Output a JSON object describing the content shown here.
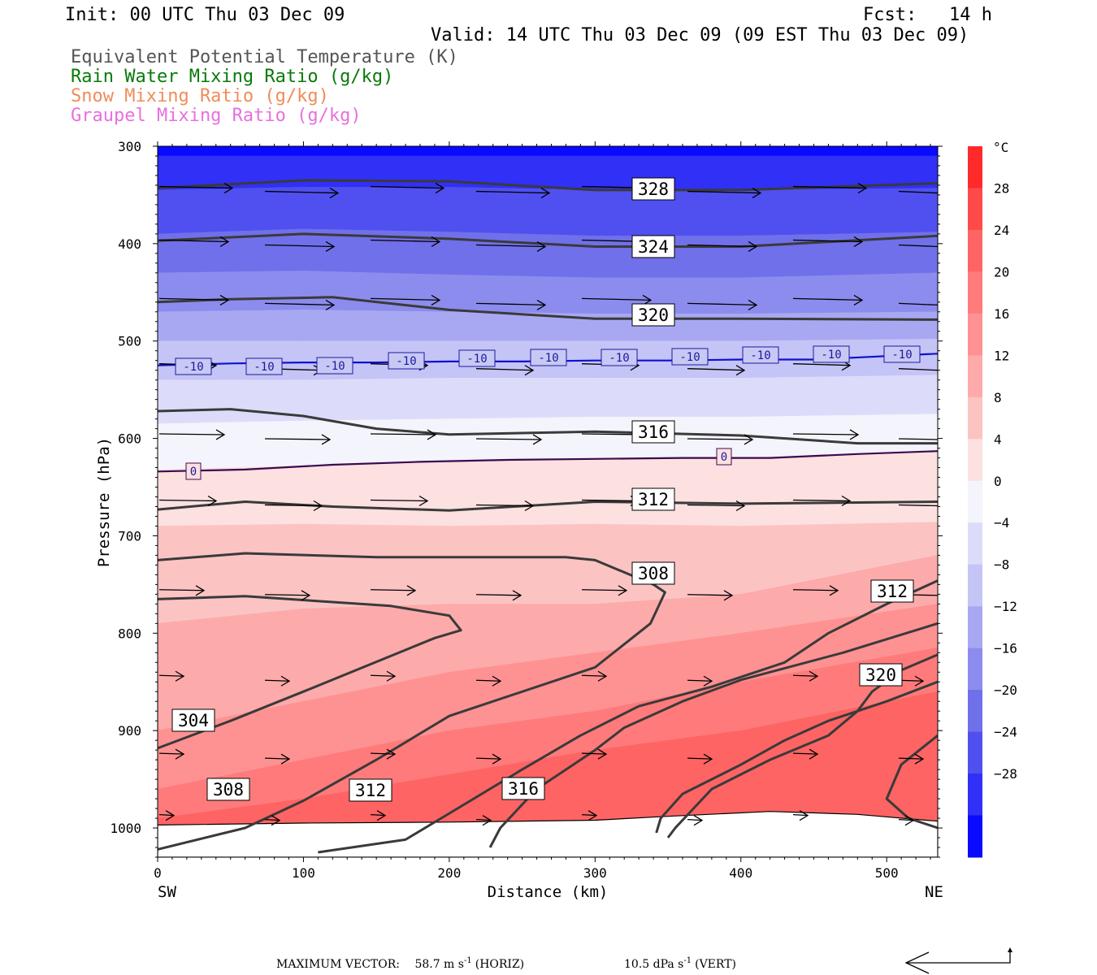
{
  "header": {
    "init": "Init: 00 UTC Thu 03 Dec 09",
    "fcst": "Fcst:   14 h",
    "valid": "Valid: 14 UTC Thu 03 Dec 09 (09 EST Thu 03 Dec 09)"
  },
  "fields": [
    {
      "label": "Equivalent Potential Temperature (K)",
      "color": "#555555"
    },
    {
      "label": "Rain Water Mixing Ratio (g/kg)",
      "color": "#0a7a0a"
    },
    {
      "label": "Snow Mixing Ratio (g/kg)",
      "color": "#f08c5a"
    },
    {
      "label": "Graupel Mixing Ratio (g/kg)",
      "color": "#e870e0"
    }
  ],
  "footer": {
    "max_vector_label": "MAXIMUM VECTOR:",
    "horiz_value": "58.7 m s",
    "horiz_exp": "-1",
    "horiz_unit": "(HORIZ)",
    "vert_value": "10.5 dPa s",
    "vert_exp": "-1",
    "vert_unit": "(VERT)"
  },
  "chart_data": {
    "type": "heatmap",
    "xlabel": "Distance (km)",
    "ylabel": "Pressure (hPa)",
    "x_ticks": [
      0,
      100,
      200,
      300,
      400,
      500
    ],
    "y_ticks": [
      300,
      400,
      500,
      600,
      700,
      800,
      900,
      1000
    ],
    "xlim": [
      0,
      535
    ],
    "ylim": [
      300,
      1030
    ],
    "x_end_labels": {
      "left": "SW",
      "right": "NE"
    },
    "colorbar": {
      "unit": "°C",
      "levels": [
        28,
        24,
        20,
        16,
        12,
        8,
        4,
        0,
        -4,
        -8,
        -12,
        -16,
        -20,
        -24,
        -28
      ],
      "tick_labels": [
        "28",
        "24",
        "20",
        "16",
        "12",
        "8",
        "4",
        "0",
        "−4",
        "−8",
        "−12",
        "−16",
        "−20",
        "−24",
        "−28"
      ],
      "colors": [
        "#ff2a2a",
        "#ff4a4a",
        "#ff6464",
        "#ff7b7b",
        "#fe9292",
        "#fdaaaa",
        "#fcc3c3",
        "#fde0e0",
        "#f4f4fc",
        "#dcdcfa",
        "#c4c4f6",
        "#a8a8f2",
        "#8c8cee",
        "#7070ea",
        "#5050f0",
        "#3030f6",
        "#0a0aff"
      ]
    },
    "theta_e_labels": [
      "328",
      "324",
      "320",
      "316",
      "312",
      "308",
      "312",
      "320",
      "304",
      "308",
      "312",
      "316"
    ],
    "temperature_isotherm_labels": [
      "-10",
      "0"
    ],
    "theta_e_contours": [
      {
        "level": 328,
        "points": [
          [
            0,
            343
          ],
          [
            100,
            335
          ],
          [
            200,
            336
          ],
          [
            300,
            345
          ],
          [
            400,
            345
          ],
          [
            535,
            338
          ]
        ]
      },
      {
        "level": 324,
        "points": [
          [
            0,
            397
          ],
          [
            100,
            390
          ],
          [
            200,
            395
          ],
          [
            300,
            403
          ],
          [
            400,
            403
          ],
          [
            535,
            392
          ]
        ]
      },
      {
        "level": 320,
        "points": [
          [
            0,
            460
          ],
          [
            50,
            457
          ],
          [
            120,
            455
          ],
          [
            200,
            468
          ],
          [
            300,
            477
          ],
          [
            400,
            477
          ],
          [
            535,
            478
          ]
        ]
      },
      {
        "level": 316,
        "points": [
          [
            0,
            572
          ],
          [
            50,
            570
          ],
          [
            100,
            577
          ],
          [
            150,
            590
          ],
          [
            200,
            596
          ],
          [
            300,
            593
          ],
          [
            400,
            597
          ],
          [
            480,
            605
          ],
          [
            535,
            605
          ]
        ]
      },
      {
        "level": 312,
        "points": [
          [
            0,
            673
          ],
          [
            60,
            665
          ],
          [
            120,
            670
          ],
          [
            200,
            674
          ],
          [
            300,
            665
          ],
          [
            400,
            667
          ],
          [
            535,
            665
          ]
        ]
      },
      {
        "level": 308,
        "points": [
          [
            0,
            725
          ],
          [
            60,
            718
          ],
          [
            150,
            722
          ],
          [
            280,
            722
          ],
          [
            300,
            725
          ],
          [
            340,
            750
          ],
          [
            348,
            758
          ],
          [
            338,
            790
          ],
          [
            300,
            835
          ],
          [
            200,
            885
          ],
          [
            150,
            930
          ],
          [
            100,
            972
          ],
          [
            60,
            1000
          ],
          [
            0,
            1022
          ]
        ]
      },
      {
        "level": 304,
        "points": [
          [
            0,
            765
          ],
          [
            60,
            762
          ],
          [
            160,
            772
          ],
          [
            200,
            782
          ],
          [
            208,
            797
          ],
          [
            190,
            805
          ],
          [
            100,
            860
          ],
          [
            50,
            890
          ],
          [
            0,
            918
          ]
        ]
      },
      {
        "level": 312,
        "points": [
          [
            535,
            746
          ],
          [
            500,
            770
          ],
          [
            460,
            800
          ],
          [
            430,
            830
          ],
          [
            380,
            855
          ],
          [
            330,
            875
          ],
          [
            290,
            905
          ],
          [
            250,
            940
          ],
          [
            200,
            985
          ],
          [
            170,
            1012
          ],
          [
            110,
            1025
          ]
        ]
      },
      {
        "level": 316,
        "points": [
          [
            535,
            790
          ],
          [
            470,
            820
          ],
          [
            400,
            848
          ],
          [
            360,
            870
          ],
          [
            320,
            897
          ],
          [
            300,
            920
          ],
          [
            260,
            960
          ],
          [
            235,
            1000
          ],
          [
            228,
            1020
          ]
        ]
      },
      {
        "level": 320,
        "points": [
          [
            535,
            850
          ],
          [
            500,
            870
          ],
          [
            460,
            890
          ],
          [
            430,
            910
          ],
          [
            400,
            935
          ],
          [
            360,
            965
          ],
          [
            345,
            990
          ],
          [
            342,
            1005
          ]
        ]
      },
      {
        "level": 320,
        "points": [
          [
            535,
            822
          ],
          [
            510,
            838
          ],
          [
            490,
            860
          ],
          [
            480,
            880
          ],
          [
            460,
            905
          ],
          [
            420,
            930
          ],
          [
            380,
            960
          ],
          [
            355,
            1000
          ],
          [
            350,
            1010
          ]
        ]
      },
      {
        "level": 324,
        "points": [
          [
            535,
            905
          ],
          [
            510,
            935
          ],
          [
            500,
            970
          ],
          [
            515,
            990
          ],
          [
            535,
            1000
          ]
        ]
      }
    ],
    "temperature_isotherms": [
      {
        "level": -10,
        "points": [
          [
            0,
            525
          ],
          [
            50,
            523
          ],
          [
            100,
            522
          ],
          [
            150,
            522
          ],
          [
            200,
            521
          ],
          [
            250,
            521
          ],
          [
            300,
            520
          ],
          [
            350,
            520
          ],
          [
            400,
            519
          ],
          [
            450,
            519
          ],
          [
            535,
            513
          ]
        ]
      },
      {
        "level": 0,
        "points": [
          [
            0,
            634
          ],
          [
            60,
            632
          ],
          [
            120,
            627
          ],
          [
            180,
            624
          ],
          [
            240,
            622
          ],
          [
            300,
            621
          ],
          [
            360,
            620
          ],
          [
            420,
            620
          ],
          [
            480,
            616
          ],
          [
            535,
            613
          ]
        ]
      }
    ]
  }
}
